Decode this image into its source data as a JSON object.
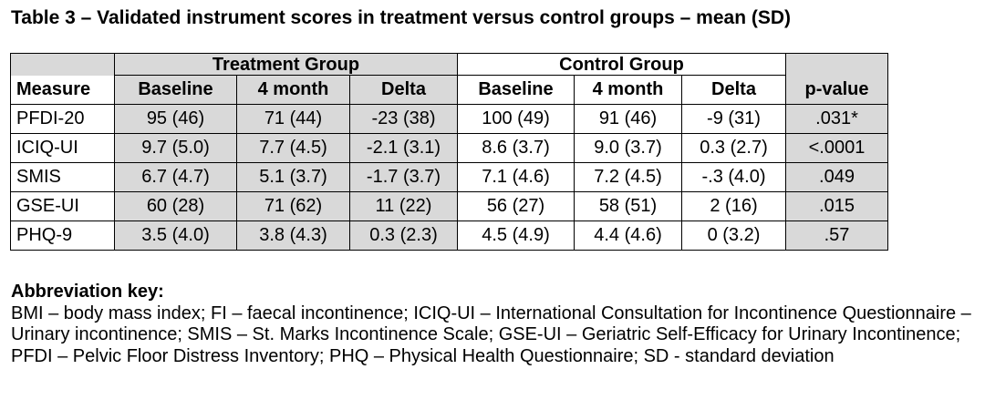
{
  "title": "Table 3 – Validated instrument scores in treatment versus control groups – mean (SD)",
  "groups": {
    "treatment": "Treatment Group",
    "control": "Control Group"
  },
  "headers": [
    "Measure",
    "Baseline",
    "4 month",
    "Delta",
    "Baseline",
    "4 month",
    "Delta",
    "p-value"
  ],
  "rows": [
    [
      "PFDI-20",
      "95 (46)",
      "71 (44)",
      "-23 (38)",
      "100 (49)",
      "91 (46)",
      "-9 (31)",
      ".031*"
    ],
    [
      "ICIQ-UI",
      "9.7 (5.0)",
      "7.7 (4.5)",
      "-2.1 (3.1)",
      "8.6 (3.7)",
      "9.0 (3.7)",
      "0.3 (2.7)",
      "<.0001"
    ],
    [
      "SMIS",
      "6.7 (4.7)",
      "5.1 (3.7)",
      "-1.7 (3.7)",
      "7.1 (4.6)",
      "7.2 (4.5)",
      "-.3 (4.0)",
      ".049"
    ],
    [
      "GSE-UI",
      "60 (28)",
      "71 (62)",
      "11 (22)",
      "56 (27)",
      "58 (51)",
      "2 (16)",
      ".015"
    ],
    [
      "PHQ-9",
      "3.5 (4.0)",
      "3.8 (4.3)",
      "0.3 (2.3)",
      "4.5 (4.9)",
      "4.4 (4.6)",
      "0 (3.2)",
      ".57"
    ]
  ],
  "key": {
    "title": "Abbreviation key:",
    "text": "BMI – body mass index; FI – faecal incontinence; ICIQ-UI – International Consultation for Incontinence Questionnaire – Urinary incontinence; SMIS – St. Marks Incontinence Scale; GSE-UI – Geriatric Self-Efficacy for Urinary Incontinence; PFDI – Pelvic Floor Distress Inventory; PHQ – Physical Health Questionnaire; SD - standard deviation"
  },
  "colors": {
    "shade": "#d9d9d9",
    "border": "#000000"
  }
}
